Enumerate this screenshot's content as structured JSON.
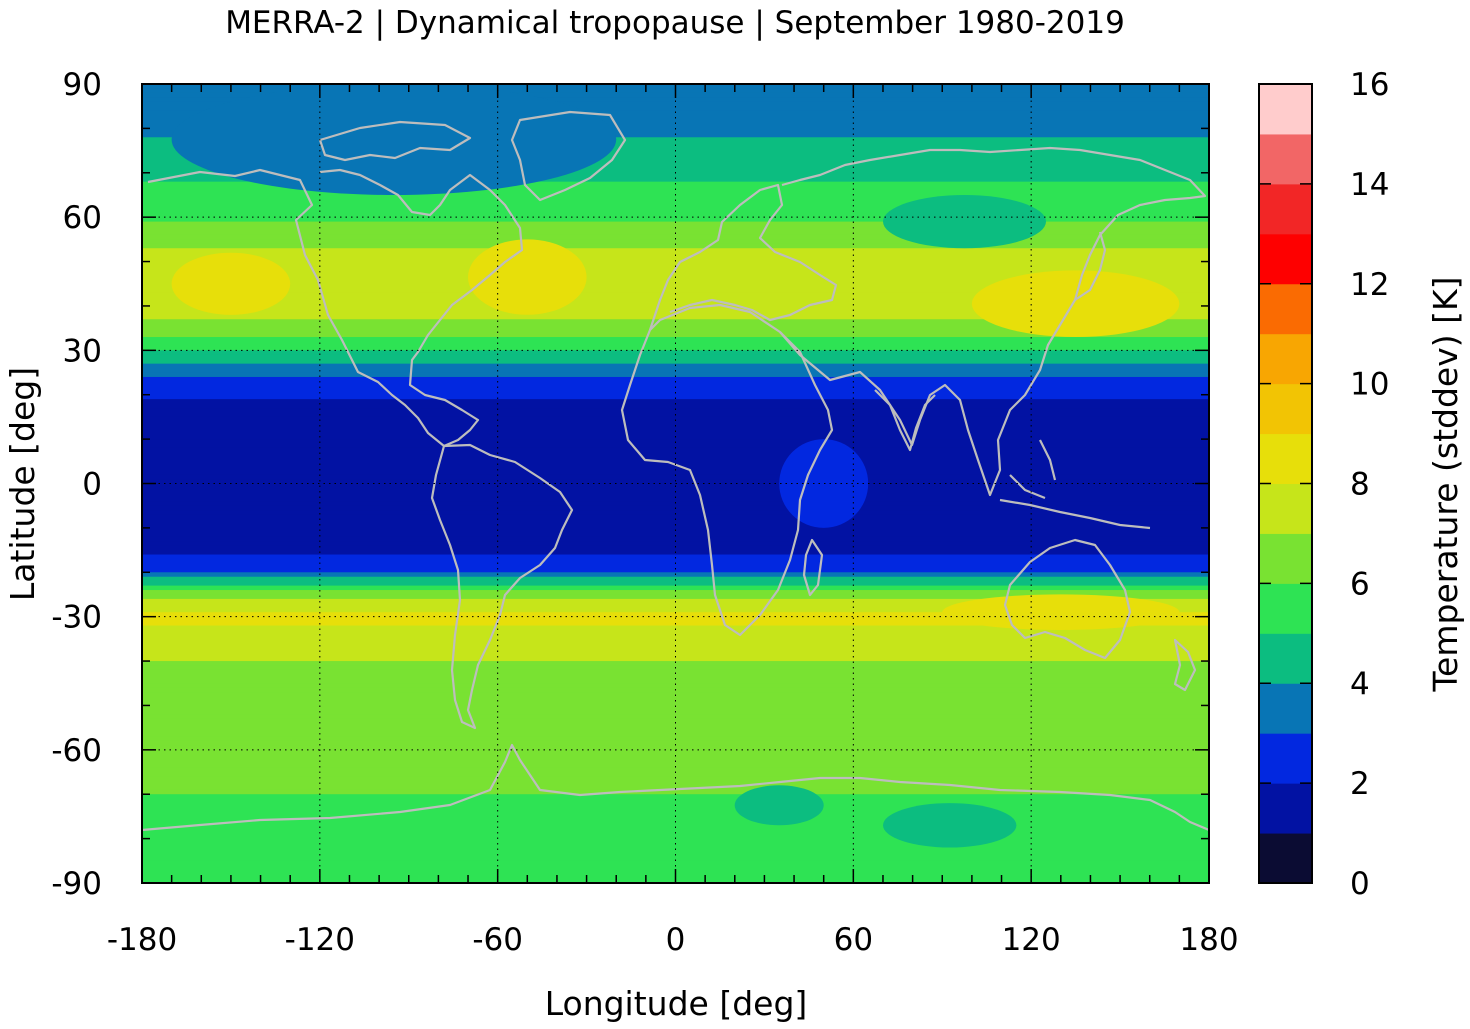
{
  "chart_data": {
    "type": "heatmap",
    "title": "MERRA-2 | Dynamical tropopause | September 1980-2019",
    "xlabel": "Longitude [deg]",
    "ylabel": "Latitude [deg]",
    "xlim": [
      -180,
      180
    ],
    "ylim": [
      -90,
      90
    ],
    "xticks": [
      "-180",
      "-120",
      "-60",
      "0",
      "60",
      "120",
      "180"
    ],
    "yticks": [
      "90",
      "60",
      "30",
      "0",
      "-30",
      "-60",
      "-90"
    ],
    "grid": true,
    "colorbar": {
      "label": "Temperature (stddev) [K]",
      "range": [
        0,
        16
      ],
      "ticks": [
        "0",
        "2",
        "4",
        "6",
        "8",
        "10",
        "12",
        "14",
        "16"
      ],
      "levels": [
        {
          "from": 0,
          "to": 1,
          "color": "#0b0c33"
        },
        {
          "from": 1,
          "to": 2,
          "color": "#0212a3"
        },
        {
          "from": 2,
          "to": 3,
          "color": "#0228e0"
        },
        {
          "from": 3,
          "to": 4,
          "color": "#0875b5"
        },
        {
          "from": 4,
          "to": 5,
          "color": "#0cbd80"
        },
        {
          "from": 5,
          "to": 6,
          "color": "#2ee354"
        },
        {
          "from": 6,
          "to": 7,
          "color": "#79e232"
        },
        {
          "from": 7,
          "to": 8,
          "color": "#c6e51a"
        },
        {
          "from": 8,
          "to": 9,
          "color": "#e7df0a"
        },
        {
          "from": 9,
          "to": 10,
          "color": "#f2c404"
        },
        {
          "from": 10,
          "to": 11,
          "color": "#f8a602"
        },
        {
          "from": 11,
          "to": 12,
          "color": "#fa6b02"
        },
        {
          "from": 12,
          "to": 13,
          "color": "#fe0000"
        },
        {
          "from": 13,
          "to": 14,
          "color": "#f22626"
        },
        {
          "from": 14,
          "to": 15,
          "color": "#f26666"
        },
        {
          "from": 15,
          "to": 16,
          "color": "#ffcccc"
        }
      ]
    },
    "latitude_profile": [
      {
        "lat": 90,
        "value": 3.5
      },
      {
        "lat": 85,
        "value": 3.6
      },
      {
        "lat": 80,
        "value": 3.8
      },
      {
        "lat": 75,
        "value": 4.4
      },
      {
        "lat": 70,
        "value": 4.8
      },
      {
        "lat": 65,
        "value": 5.3
      },
      {
        "lat": 60,
        "value": 5.8
      },
      {
        "lat": 55,
        "value": 6.6
      },
      {
        "lat": 50,
        "value": 7.4
      },
      {
        "lat": 45,
        "value": 7.8
      },
      {
        "lat": 40,
        "value": 7.6
      },
      {
        "lat": 35,
        "value": 6.6
      },
      {
        "lat": 30,
        "value": 5.0
      },
      {
        "lat": 25,
        "value": 3.2
      },
      {
        "lat": 20,
        "value": 2.2
      },
      {
        "lat": 15,
        "value": 1.5
      },
      {
        "lat": 10,
        "value": 1.2
      },
      {
        "lat": 5,
        "value": 1.2
      },
      {
        "lat": 0,
        "value": 1.2
      },
      {
        "lat": -5,
        "value": 1.2
      },
      {
        "lat": -10,
        "value": 1.3
      },
      {
        "lat": -15,
        "value": 1.6
      },
      {
        "lat": -20,
        "value": 3.0
      },
      {
        "lat": -25,
        "value": 6.6
      },
      {
        "lat": -30,
        "value": 8.3
      },
      {
        "lat": -35,
        "value": 7.5
      },
      {
        "lat": -40,
        "value": 7.0
      },
      {
        "lat": -45,
        "value": 6.5
      },
      {
        "lat": -50,
        "value": 6.4
      },
      {
        "lat": -55,
        "value": 6.5
      },
      {
        "lat": -60,
        "value": 6.8
      },
      {
        "lat": -65,
        "value": 6.5
      },
      {
        "lat": -70,
        "value": 6.0
      },
      {
        "lat": -75,
        "value": 5.6
      },
      {
        "lat": -80,
        "value": 5.5
      },
      {
        "lat": -85,
        "value": 5.8
      },
      {
        "lat": -90,
        "value": 6.0
      }
    ],
    "regional_features": [
      {
        "lon_range": [
          -170,
          -20
        ],
        "lat_range": [
          65,
          90
        ],
        "value": 3.5
      },
      {
        "lon_range": [
          70,
          125
        ],
        "lat_range": [
          53,
          65
        ],
        "value": 4.5
      },
      {
        "lon_range": [
          35,
          65
        ],
        "lat_range": [
          -10,
          10
        ],
        "value": 2.5
      },
      {
        "lon_range": [
          -170,
          -130
        ],
        "lat_range": [
          38,
          52
        ],
        "value": 8.5
      },
      {
        "lon_range": [
          -70,
          -30
        ],
        "lat_range": [
          38,
          55
        ],
        "value": 8.5
      },
      {
        "lon_range": [
          100,
          170
        ],
        "lat_range": [
          33,
          48
        ],
        "value": 8.8
      },
      {
        "lon_range": [
          90,
          170
        ],
        "lat_range": [
          -33,
          -25
        ],
        "value": 8.8
      },
      {
        "lon_range": [
          20,
          50
        ],
        "lat_range": [
          -77,
          -68
        ],
        "value": 4.5
      },
      {
        "lon_range": [
          70,
          115
        ],
        "lat_range": [
          -82,
          -72
        ],
        "value": 4.5
      }
    ]
  }
}
